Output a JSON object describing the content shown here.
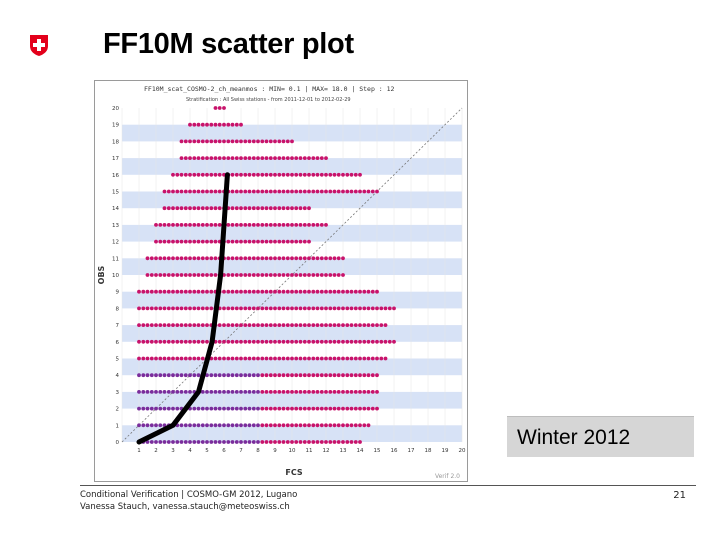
{
  "slide": {
    "title": "FF10M scatter plot",
    "badge": "Winter 2012",
    "footer_line1": "Conditional Verification | COSMO-GM 2012, Lugano",
    "footer_line2": "Vanessa Stauch, vanessa.stauch@meteoswiss.ch",
    "page_number": "21"
  },
  "colors": {
    "band": "#d7e2f6",
    "point": "#c8136b",
    "point_dense": "#7a2d9c",
    "trend": "#000000",
    "diagonal": "#777777",
    "logo_red": "#e3001b"
  },
  "chart_data": {
    "type": "scatter",
    "header": "FF10M_scat_COSMO-2_ch_meanmos : MIN=   0.1 | MAX=  18.0 | Step : 12",
    "subheader": "Stratification : All Swiss stations - from 2011-12-01 to 2012-02-29",
    "xlabel": "FCS",
    "ylabel": "OBS",
    "watermark": "Verif 2.0",
    "xlim": [
      0,
      20
    ],
    "ylim": [
      0,
      20
    ],
    "x_ticks": [
      "1",
      "2",
      "3",
      "4",
      "5",
      "6",
      "7",
      "8",
      "9",
      "10",
      "11",
      "12",
      "13",
      "14",
      "15",
      "16",
      "17",
      "18",
      "19",
      "20"
    ],
    "y_ticks": [
      "0",
      "1",
      "2",
      "3",
      "4",
      "5",
      "6",
      "7",
      "8",
      "9",
      "10",
      "11",
      "12",
      "13",
      "14",
      "15",
      "16",
      "17",
      "18",
      "19",
      "20"
    ],
    "diagonal": true,
    "point_rows": [
      {
        "y": 0,
        "x_min": 1.0,
        "x_max": 14.0
      },
      {
        "y": 1,
        "x_min": 1.0,
        "x_max": 14.5
      },
      {
        "y": 2,
        "x_min": 1.0,
        "x_max": 15.0
      },
      {
        "y": 3,
        "x_min": 1.0,
        "x_max": 15.0
      },
      {
        "y": 4,
        "x_min": 1.0,
        "x_max": 15.0
      },
      {
        "y": 5,
        "x_min": 1.0,
        "x_max": 15.5
      },
      {
        "y": 6,
        "x_min": 1.0,
        "x_max": 16.0
      },
      {
        "y": 7,
        "x_min": 1.0,
        "x_max": 15.5
      },
      {
        "y": 8,
        "x_min": 1.0,
        "x_max": 16.0
      },
      {
        "y": 9,
        "x_min": 1.0,
        "x_max": 15.0
      },
      {
        "y": 10,
        "x_min": 1.5,
        "x_max": 13.0
      },
      {
        "y": 11,
        "x_min": 1.5,
        "x_max": 13.0
      },
      {
        "y": 12,
        "x_min": 2.0,
        "x_max": 11.0
      },
      {
        "y": 13,
        "x_min": 2.0,
        "x_max": 12.0
      },
      {
        "y": 14,
        "x_min": 2.5,
        "x_max": 11.0
      },
      {
        "y": 15,
        "x_min": 2.5,
        "x_max": 15.0
      },
      {
        "y": 16,
        "x_min": 3.0,
        "x_max": 14.0
      },
      {
        "y": 17,
        "x_min": 3.5,
        "x_max": 12.0
      },
      {
        "y": 18,
        "x_min": 3.5,
        "x_max": 10.0
      },
      {
        "y": 19,
        "x_min": 4.0,
        "x_max": 7.0
      },
      {
        "y": 20,
        "x_min": 5.5,
        "x_max": 6.0
      }
    ],
    "dense_rows": [
      0,
      1,
      2,
      3,
      4
    ],
    "dense_x_max": 8.0,
    "trend_line": [
      [
        1.0,
        0.0
      ],
      [
        3.0,
        1.0
      ],
      [
        4.5,
        3.0
      ],
      [
        5.3,
        6.0
      ],
      [
        5.8,
        10.0
      ],
      [
        6.2,
        16.0
      ]
    ]
  }
}
